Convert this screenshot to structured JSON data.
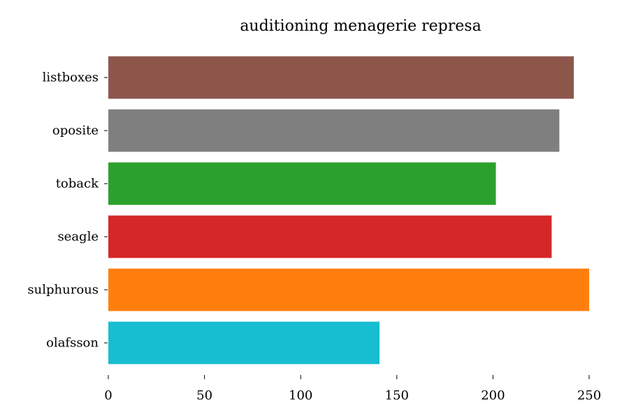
{
  "chart_data": {
    "type": "bar",
    "orientation": "horizontal",
    "title": "auditioning menagerie represa",
    "xlabel": "",
    "ylabel": "",
    "xlim": [
      0,
      255
    ],
    "xticks": [
      0,
      50,
      100,
      150,
      200,
      250
    ],
    "grid": false,
    "legend": "none",
    "categories": [
      "listboxes",
      "oposite",
      "toback",
      "seagle",
      "sulphurous",
      "olafsson"
    ],
    "values": [
      242,
      234.5,
      201.5,
      230.5,
      250,
      141
    ],
    "colors": [
      "#8c564b",
      "#7f7f7f",
      "#2ca02c",
      "#d62728",
      "#ff7f0e",
      "#17becf"
    ]
  }
}
